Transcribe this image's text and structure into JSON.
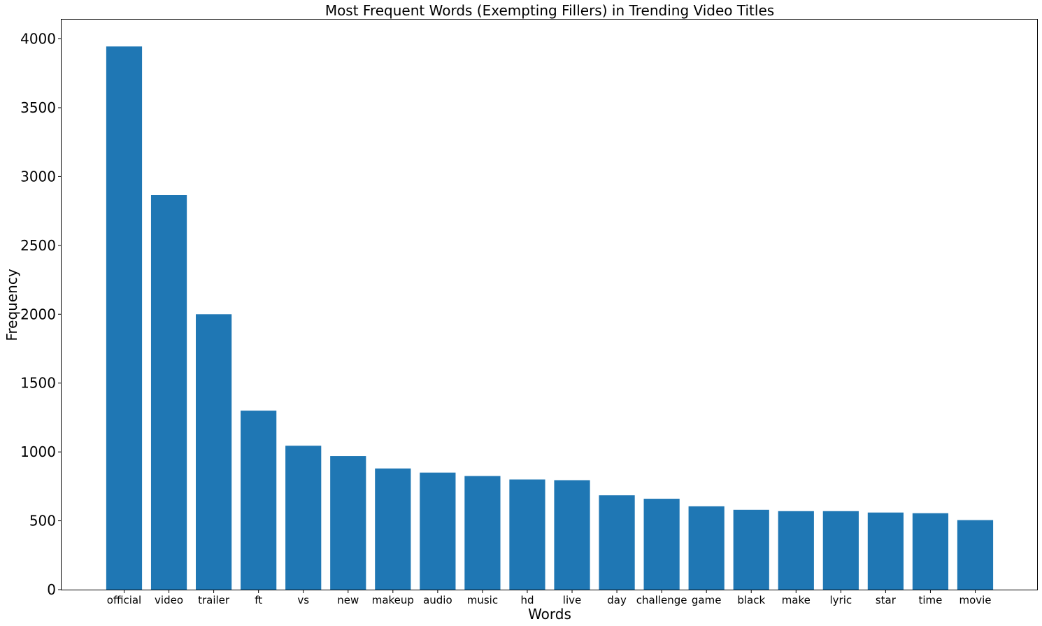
{
  "chart_data": {
    "type": "bar",
    "title": "Most Frequent Words (Exempting Fillers) in Trending Video Titles",
    "xlabel": "Words",
    "ylabel": "Frequency",
    "categories": [
      "official",
      "video",
      "trailer",
      "ft",
      "vs",
      "new",
      "makeup",
      "audio",
      "music",
      "hd",
      "live",
      "day",
      "challenge",
      "game",
      "black",
      "make",
      "lyric",
      "star",
      "time",
      "movie"
    ],
    "values": [
      3945,
      2865,
      2000,
      1300,
      1045,
      970,
      880,
      850,
      825,
      800,
      795,
      685,
      660,
      605,
      580,
      570,
      570,
      560,
      555,
      505
    ],
    "ylim": [
      0,
      4140
    ],
    "yticks": [
      0,
      500,
      1000,
      1500,
      2000,
      2500,
      3000,
      3500,
      4000
    ],
    "grid": false,
    "bar_color": "#1f77b4"
  }
}
